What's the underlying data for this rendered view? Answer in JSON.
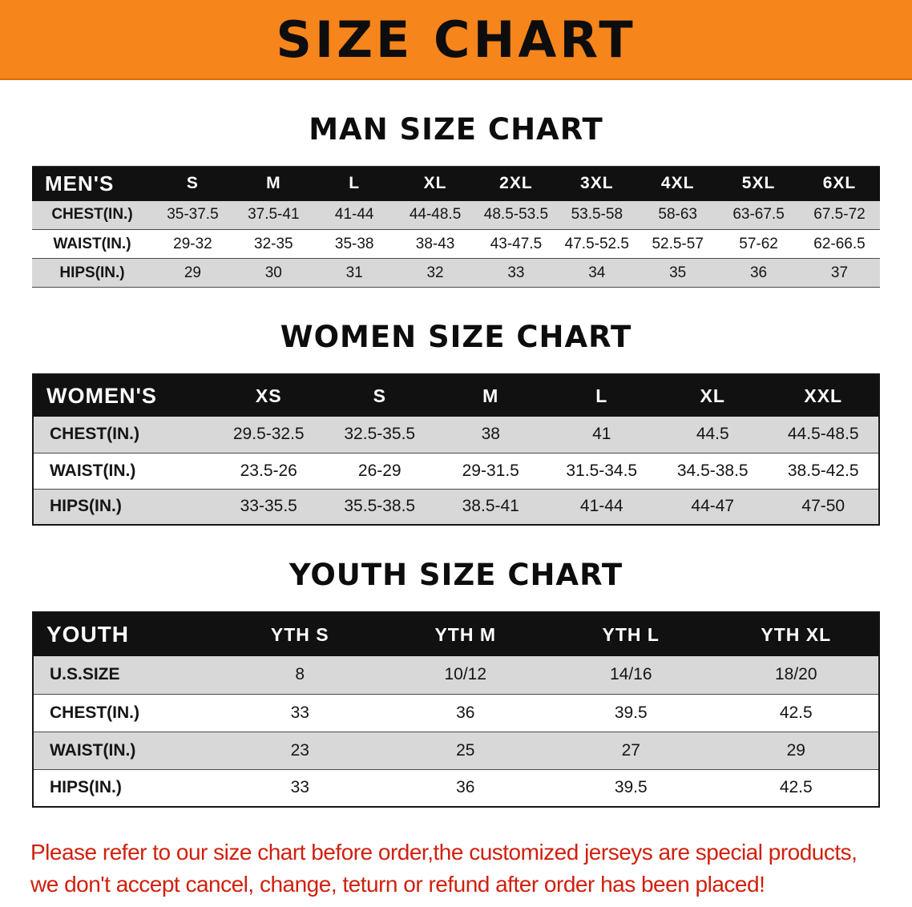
{
  "banner": {
    "title": "SIZE CHART"
  },
  "colors": {
    "banner_bg": "#f6851c",
    "table_header_bg": "#111111",
    "stripe_bg": "#d8d8d8",
    "note_red": "#d0200e"
  },
  "sections": [
    {
      "id": "men",
      "heading": "MAN SIZE CHART",
      "table": {
        "columns": [
          "MEN'S",
          "S",
          "M",
          "L",
          "XL",
          "2XL",
          "3XL",
          "4XL",
          "5XL",
          "6XL"
        ],
        "rows": [
          {
            "label": "CHEST(IN.)",
            "values": [
              "35-37.5",
              "37.5-41",
              "41-44",
              "44-48.5",
              "48.5-53.5",
              "53.5-58",
              "58-63",
              "63-67.5",
              "67.5-72"
            ]
          },
          {
            "label": "WAIST(IN.)",
            "values": [
              "29-32",
              "32-35",
              "35-38",
              "38-43",
              "43-47.5",
              "47.5-52.5",
              "52.5-57",
              "57-62",
              "62-66.5"
            ]
          },
          {
            "label": "HIPS(IN.)",
            "values": [
              "29",
              "30",
              "31",
              "32",
              "33",
              "34",
              "35",
              "36",
              "37"
            ]
          }
        ]
      }
    },
    {
      "id": "women",
      "heading": "WOMEN SIZE CHART",
      "table": {
        "columns": [
          "WOMEN'S",
          "XS",
          "S",
          "M",
          "L",
          "XL",
          "XXL"
        ],
        "rows": [
          {
            "label": "CHEST(IN.)",
            "values": [
              "29.5-32.5",
              "32.5-35.5",
              "38",
              "41",
              "44.5",
              "44.5-48.5"
            ]
          },
          {
            "label": "WAIST(IN.)",
            "values": [
              "23.5-26",
              "26-29",
              "29-31.5",
              "31.5-34.5",
              "34.5-38.5",
              "38.5-42.5"
            ]
          },
          {
            "label": "HIPS(IN.)",
            "values": [
              "33-35.5",
              "35.5-38.5",
              "38.5-41",
              "41-44",
              "44-47",
              "47-50"
            ]
          }
        ]
      }
    },
    {
      "id": "youth",
      "heading": "YOUTH SIZE CHART",
      "table": {
        "columns": [
          "YOUTH",
          "YTH S",
          "YTH M",
          "YTH L",
          "YTH XL"
        ],
        "rows": [
          {
            "label": "U.S.SIZE",
            "values": [
              "8",
              "10/12",
              "14/16",
              "18/20"
            ]
          },
          {
            "label": "CHEST(IN.)",
            "values": [
              "33",
              "36",
              "39.5",
              "42.5"
            ]
          },
          {
            "label": "WAIST(IN.)",
            "values": [
              "23",
              "25",
              "27",
              "29"
            ]
          },
          {
            "label": "HIPS(IN.)",
            "values": [
              "33",
              "36",
              "39.5",
              "42.5"
            ]
          }
        ]
      }
    }
  ],
  "footer": {
    "line1": "Please refer to our size chart before order,the customized jerseys are special products,",
    "line2": "we don't accept cancel, change, teturn or refund after order has been placed!"
  }
}
